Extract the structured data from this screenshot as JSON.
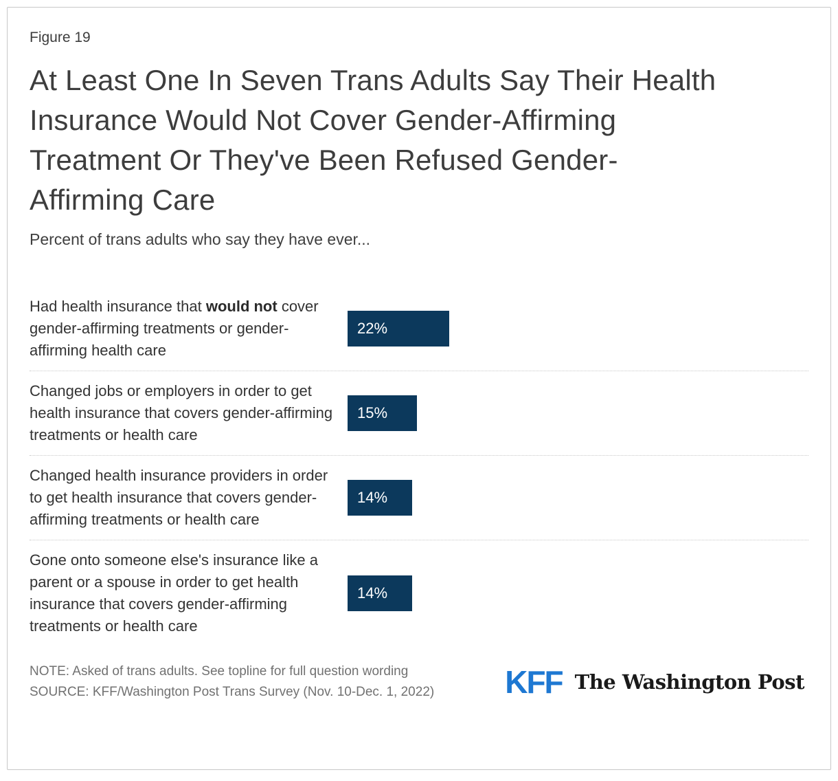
{
  "figure_label": "Figure 19",
  "header": {
    "title_lines": [
      "At Least One In Seven Trans Adults Say Their Health",
      "Insurance Would Not Cover Gender-Affirming",
      "Treatment Or They've Been Refused Gender-",
      "Affirming Care"
    ],
    "subtitle": "Percent of trans adults who say they have ever..."
  },
  "chart_data": {
    "type": "bar",
    "orientation": "horizontal",
    "title": "At Least One In Seven Trans Adults Say Their Health Insurance Would Not Cover Gender-Affirming Treatment Or They've Been Refused Gender-Affirming Care",
    "subtitle": "Percent of trans adults who say they have ever...",
    "xlabel": "",
    "ylabel": "",
    "xmax": 100,
    "xlim": [
      0,
      100
    ],
    "grid": false,
    "legend": false,
    "bar_color": "#0c395c",
    "categories": [
      "Had health insurance that would not cover gender-affirming treatments or gender-affirming health care",
      "Changed jobs or employers in order to get health insurance that covers gender-affirming treatments or health care",
      "Changed health insurance providers in order to get health insurance that covers gender-affirming treatments or health care",
      "Gone onto someone else's insurance like a parent or a spouse in order to get health insurance that covers gender-affirming treatments or health care"
    ],
    "values": [
      22,
      15,
      14,
      14
    ],
    "rows": [
      {
        "label_pre": "Had health insurance that ",
        "label_bold": "would not",
        "label_post": " cover gender-affirming treatments or gender-affirming health care",
        "value": 22,
        "value_label": "22%"
      },
      {
        "label_pre": "Changed jobs or employers in order to get health insurance that covers gender-affirming treatments or health care",
        "label_bold": "",
        "label_post": "",
        "value": 15,
        "value_label": "15%"
      },
      {
        "label_pre": "Changed health insurance providers in order to get health insurance that covers gender-affirming treatments or health care",
        "label_bold": "",
        "label_post": "",
        "value": 14,
        "value_label": "14%"
      },
      {
        "label_pre": "Gone onto someone else's insurance like a parent or a spouse in order to get health insurance that covers gender-affirming treatments or health care",
        "label_bold": "",
        "label_post": "",
        "value": 14,
        "value_label": "14%"
      }
    ]
  },
  "footer": {
    "note": "NOTE: Asked of trans adults. See topline for full question wording",
    "source": "SOURCE: KFF/Washington Post Trans Survey (Nov. 10-Dec. 1, 2022)",
    "kff_logo": "KFF",
    "wapo_logo": "The Washington Post"
  },
  "colors": {
    "bar_navy": "#0c395c",
    "kff_blue": "#1e78d2",
    "text_dark": "#3d3d3d",
    "text_gray": "#717171",
    "separator": "#c9c9c9",
    "frame_border": "#c7c7c7"
  }
}
